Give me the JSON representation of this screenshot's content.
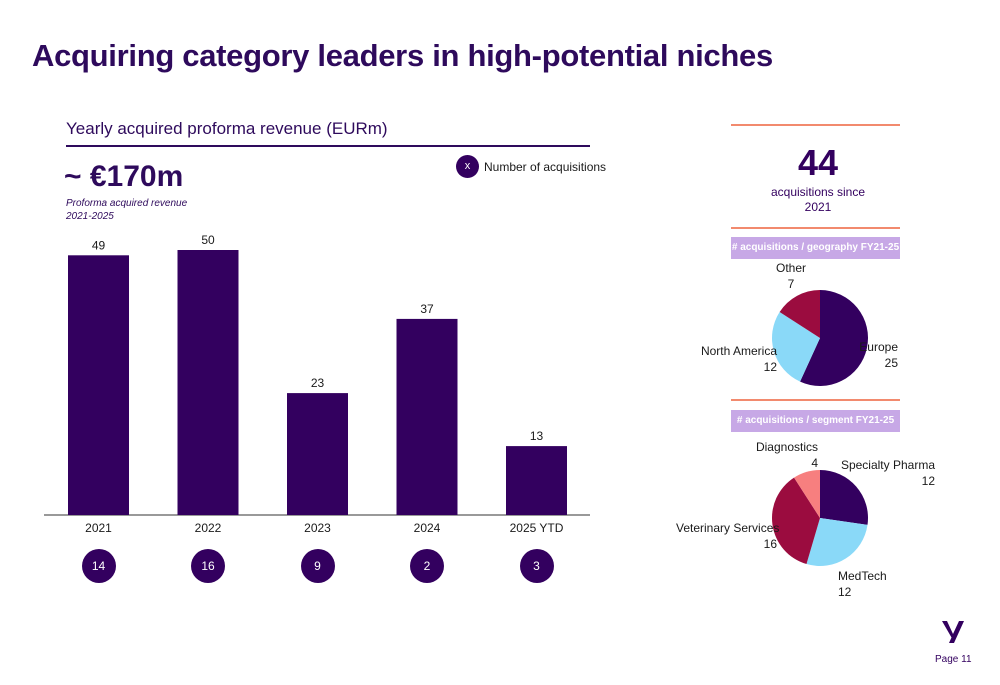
{
  "title": "Acquiring category leaders in high-potential niches",
  "chart_data": [
    {
      "type": "bar",
      "title": "Yearly acquired proforma revenue (EURm)",
      "categories": [
        "2021",
        "2022",
        "2023",
        "2024",
        "2025 YTD"
      ],
      "values": [
        49,
        50,
        23,
        37,
        13
      ],
      "acquisitions": [
        14,
        16,
        9,
        2,
        3
      ],
      "xlabel": "",
      "ylabel": "",
      "ylim": [
        0,
        55
      ],
      "grid": false,
      "color": "#33005f"
    },
    {
      "type": "pie",
      "title": "# acquisitions / geography FY21-25",
      "labels": [
        "Europe",
        "North America",
        "Other"
      ],
      "values": [
        25,
        12,
        7
      ],
      "colors": [
        "#33005f",
        "#8ad9f8",
        "#9b0c3f"
      ]
    },
    {
      "type": "pie",
      "title": "# acquisitions / segment FY21-25",
      "labels": [
        "Specialty Pharma",
        "MedTech",
        "Veterinary Services",
        "Diagnostics"
      ],
      "values": [
        12,
        12,
        16,
        4
      ],
      "colors": [
        "#33005f",
        "#8ad9f8",
        "#9b0c3f",
        "#f77f7f"
      ]
    }
  ],
  "headline": {
    "value": "~ €170m",
    "note_line1": "Proforma acquired revenue",
    "note_line2": "2021-2025"
  },
  "legend": {
    "symbol": "x",
    "label": "Number of acquisitions"
  },
  "kpi": {
    "value": "44",
    "text_line1": "acquisitions since",
    "text_line2": "2021"
  },
  "page": "Page 11",
  "colors": {
    "primary": "#33005f",
    "accent_line": "#f28a6e",
    "header_box": "#c7a8e6"
  }
}
